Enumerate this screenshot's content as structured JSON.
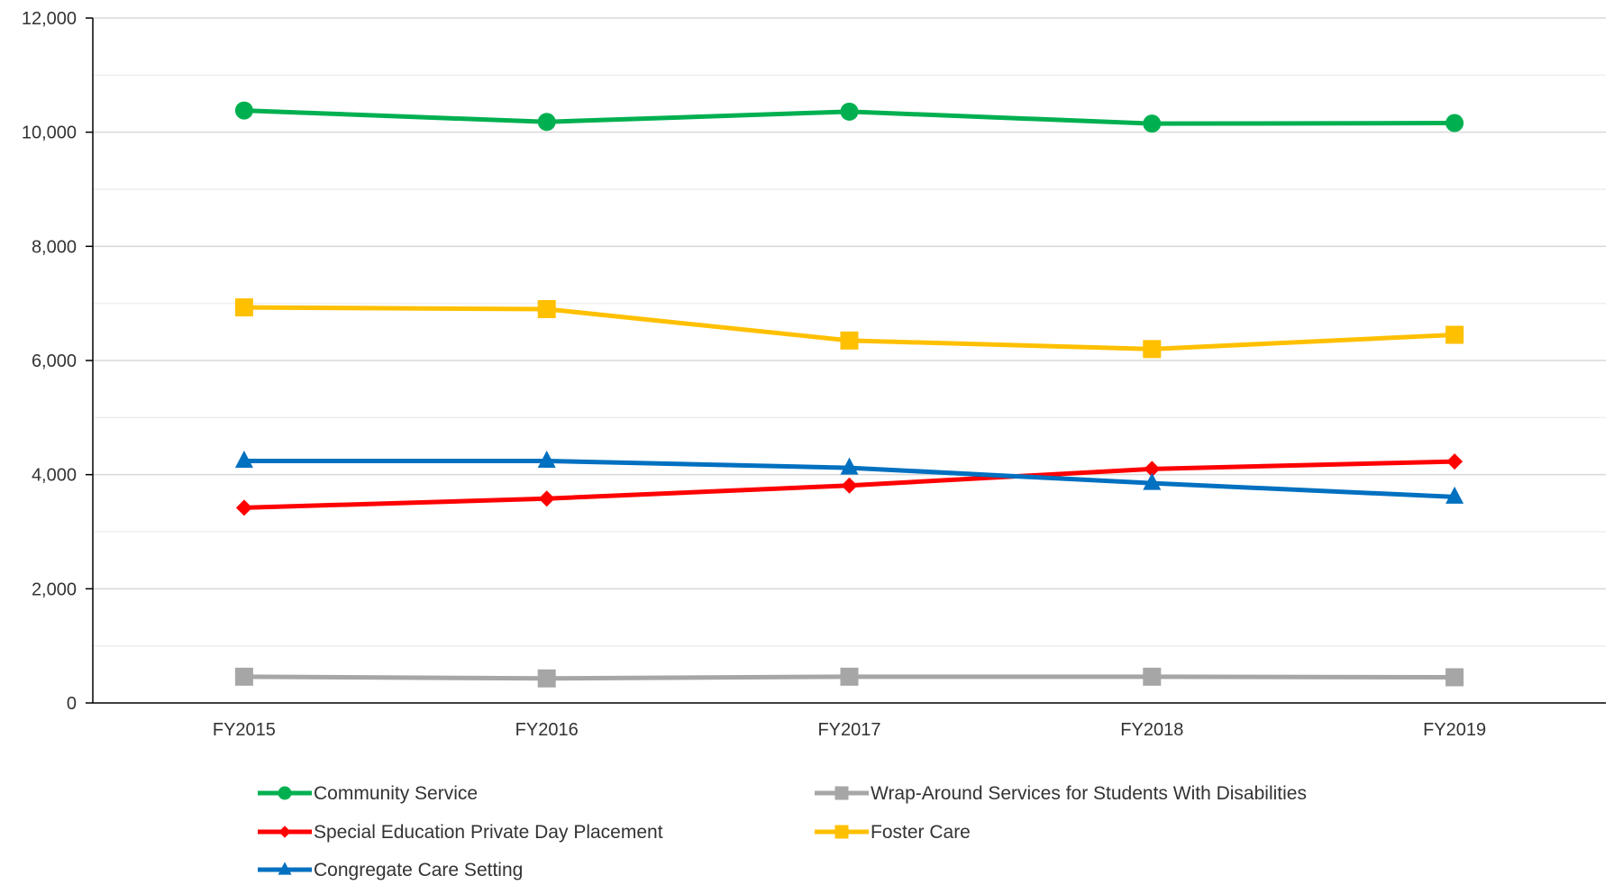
{
  "chart_data": {
    "type": "line",
    "categories": [
      "FY2015",
      "FY2016",
      "FY2017",
      "FY2018",
      "FY2019"
    ],
    "ylim": [
      0,
      12000
    ],
    "y_ticks": [
      0,
      2000,
      4000,
      6000,
      8000,
      10000,
      12000
    ],
    "y_tick_labels": [
      "0",
      "2,000",
      "4,000",
      "6,000",
      "8,000",
      "10,000",
      "12,000"
    ],
    "grid": true,
    "legend_position": "bottom",
    "series": [
      {
        "name": "Community Service",
        "values": [
          10380,
          10180,
          10360,
          10150,
          10160
        ],
        "color": "#00B050",
        "marker": "circle"
      },
      {
        "name": "Wrap-Around Services for Students With Disabilities",
        "values": [
          460,
          430,
          460,
          460,
          450
        ],
        "color": "#A6A6A6",
        "marker": "square"
      },
      {
        "name": "Special Education Private Day Placement",
        "values": [
          3420,
          3580,
          3810,
          4100,
          4230
        ],
        "color": "#FF0000",
        "marker": "diamond"
      },
      {
        "name": "Foster Care",
        "values": [
          6930,
          6900,
          6350,
          6200,
          6450
        ],
        "color": "#FFC000",
        "marker": "square"
      },
      {
        "name": "Congregate Care Setting",
        "values": [
          4240,
          4240,
          4120,
          3850,
          3610
        ],
        "color": "#0070C0",
        "marker": "triangle"
      }
    ]
  }
}
